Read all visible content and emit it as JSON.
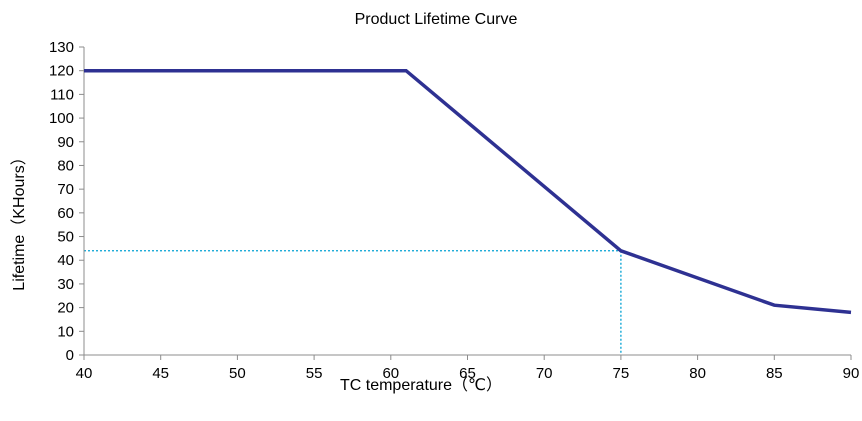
{
  "chart_data": {
    "type": "line",
    "title": "Product Lifetime Curve",
    "xlabel": "TC  temperature（℃）",
    "ylabel": "Lifetime（KHours）",
    "xlim": [
      40,
      90
    ],
    "ylim": [
      0,
      130
    ],
    "xticks": [
      40,
      45,
      50,
      55,
      60,
      65,
      70,
      75,
      80,
      85,
      90
    ],
    "yticks": [
      0,
      10,
      20,
      30,
      40,
      50,
      60,
      70,
      80,
      90,
      100,
      110,
      120,
      130
    ],
    "grid": false,
    "legend": "none",
    "series": [
      {
        "color": "#2e3192",
        "x": [
          40,
          61,
          75,
          85,
          90
        ],
        "y": [
          120,
          120,
          44,
          21,
          18
        ]
      }
    ],
    "reference_lines": {
      "color": "#00a0d2",
      "style": "dotted",
      "x": 75,
      "y": 44
    }
  }
}
